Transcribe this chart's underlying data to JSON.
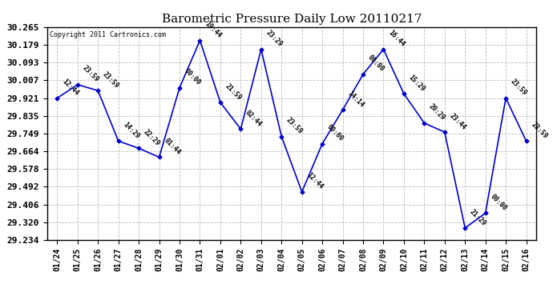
{
  "title": "Barometric Pressure Daily Low 20110217",
  "copyright": "Copyright 2011 Cartronics.com",
  "x_labels": [
    "01/24",
    "01/25",
    "01/26",
    "01/27",
    "01/28",
    "01/29",
    "01/30",
    "01/31",
    "02/01",
    "02/02",
    "02/03",
    "02/04",
    "02/05",
    "02/06",
    "02/07",
    "02/08",
    "02/09",
    "02/10",
    "02/11",
    "02/12",
    "02/13",
    "02/14",
    "02/15",
    "02/16"
  ],
  "y_values": [
    29.921,
    29.986,
    29.957,
    29.713,
    29.678,
    29.635,
    29.971,
    30.2,
    29.9,
    29.771,
    30.157,
    29.735,
    29.467,
    29.7,
    29.864,
    30.036,
    30.157,
    29.942,
    29.8,
    29.756,
    29.292,
    29.364,
    29.921,
    29.713
  ],
  "point_labels": [
    "12:44",
    "23:59",
    "23:59",
    "14:29",
    "22:29",
    "01:44",
    "00:00",
    "19:44",
    "21:59",
    "02:44",
    "23:29",
    "23:59",
    "12:44",
    "00:00",
    "14:14",
    "00:00",
    "16:44",
    "15:29",
    "20:29",
    "23:44",
    "21:29",
    "00:00",
    "23:59",
    "23:59"
  ],
  "ylim": [
    29.234,
    30.265
  ],
  "yticks": [
    29.234,
    29.32,
    29.406,
    29.492,
    29.578,
    29.664,
    29.749,
    29.835,
    29.921,
    30.007,
    30.093,
    30.179,
    30.265
  ],
  "line_color": "#0000CC",
  "marker_color": "#0000CC",
  "background_color": "#ffffff",
  "grid_color": "#bbbbbb",
  "title_fontsize": 11,
  "label_fontsize": 7,
  "annotation_fontsize": 6,
  "yaxis_fontsize": 8
}
